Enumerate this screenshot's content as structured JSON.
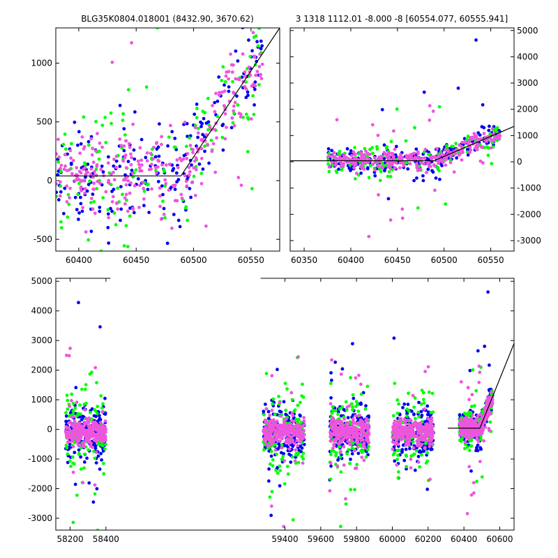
{
  "titles": {
    "left": "BLG35K0804.018001 (8432.90, 3670.62)",
    "right": "3 1318 1112.01 -8.000 -8 [60554.077, 60555.941]"
  },
  "series_colors": {
    "blue": "#0000ee",
    "green": "#00ff00",
    "magenta": "#ee55dd"
  },
  "chart_data": [
    {
      "type": "scatter",
      "panel": "zoom-linear",
      "xlim": [
        60380,
        60575
      ],
      "ylim": [
        -600,
        1300
      ],
      "xticks": [
        60400,
        60450,
        60500,
        60550
      ],
      "yticks": [
        -500,
        0,
        500,
        1000
      ],
      "model_line": {
        "x": [
          60380,
          60489,
          60575
        ],
        "y": [
          40,
          40,
          1300
        ]
      },
      "series": [
        {
          "color": "blue",
          "points_approx": 230,
          "y_range_approx": [
            -550,
            1300
          ]
        },
        {
          "color": "green",
          "points_approx": 150,
          "y_range_approx": [
            -600,
            1300
          ]
        },
        {
          "color": "magenta",
          "points_approx": 300,
          "y_range_approx": [
            -600,
            1300
          ]
        }
      ]
    },
    {
      "type": "scatter",
      "panel": "zoom-wide",
      "xlim": [
        60335,
        60575
      ],
      "ylim": [
        -3400,
        5100
      ],
      "xticks": [
        60350,
        60400,
        60450,
        60500,
        60550
      ],
      "yticks": [
        -3000,
        -2000,
        -1000,
        0,
        1000,
        2000,
        3000,
        4000,
        5000
      ],
      "model_line": {
        "x": [
          60335,
          60489,
          60575
        ],
        "y": [
          40,
          40,
          1350
        ]
      },
      "series": [
        {
          "color": "blue",
          "points_approx": 230
        },
        {
          "color": "green",
          "points_approx": 150
        },
        {
          "color": "magenta",
          "points_approx": 300
        }
      ]
    },
    {
      "type": "scatter",
      "panel": "full-light-curve",
      "xlim": [
        58120,
        60680
      ],
      "ylim": [
        -3400,
        5100
      ],
      "xticks": [
        58200,
        58400,
        59400,
        59600,
        59800,
        60000,
        60200,
        60400,
        60600
      ],
      "yticks": [
        -3000,
        -2000,
        -1000,
        0,
        1000,
        2000,
        3000,
        4000,
        5000
      ],
      "gap_between": [
        58420,
        59270
      ],
      "seasons": [
        {
          "x_range": [
            58175,
            58400
          ]
        },
        {
          "x_range": [
            59280,
            59510
          ]
        },
        {
          "x_range": [
            59650,
            59870
          ]
        },
        {
          "x_range": [
            60000,
            60230
          ]
        },
        {
          "x_range": [
            60380,
            60560
          ]
        }
      ],
      "model_line": {
        "x": [
          60310,
          60489,
          60680
        ],
        "y": [
          40,
          40,
          2900
        ]
      },
      "series": [
        {
          "color": "blue"
        },
        {
          "color": "green"
        },
        {
          "color": "magenta"
        }
      ]
    }
  ]
}
